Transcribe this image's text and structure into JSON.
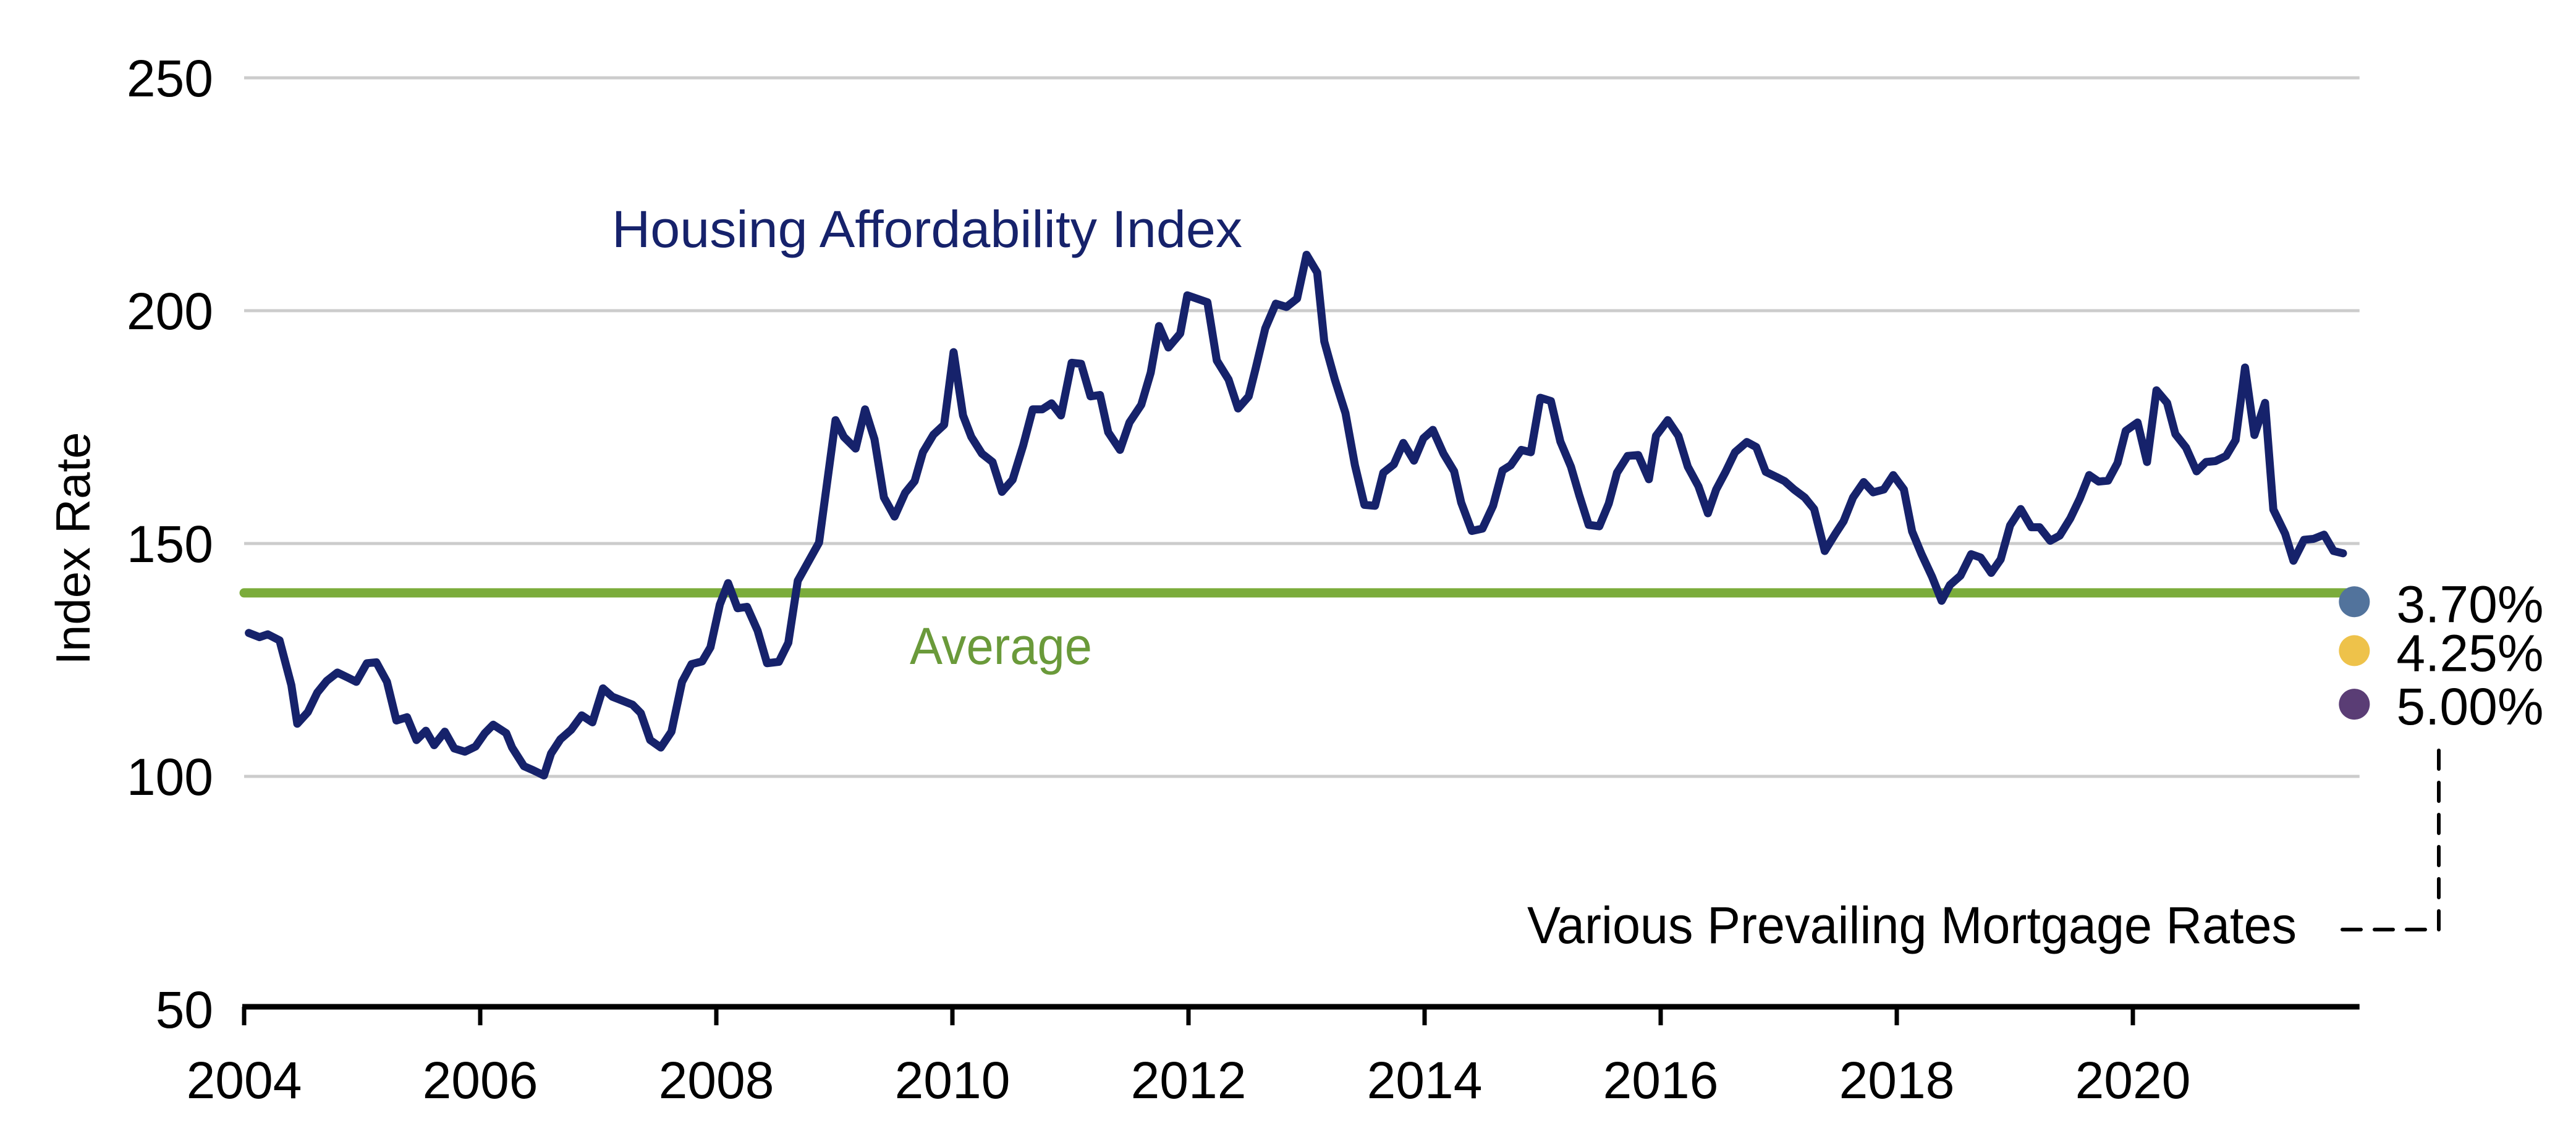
{
  "chart_data": {
    "type": "line",
    "title": "",
    "xlabel": "",
    "ylabel": "Index Rate",
    "xlim": [
      2004,
      2021.92
    ],
    "ylim": [
      50,
      250
    ],
    "grid": true,
    "x_ticks": [
      2004,
      2006,
      2008,
      2010,
      2012,
      2014,
      2016,
      2018,
      2020
    ],
    "x_tick_labels": [
      "2004",
      "2006",
      "2008",
      "2010",
      "2012",
      "2014",
      "2016",
      "2018",
      "2020"
    ],
    "y_ticks": [
      50,
      100,
      150,
      200,
      250
    ],
    "y_tick_labels": [
      "50",
      "100",
      "150",
      "200",
      "250"
    ],
    "series": [
      {
        "name": "Housing Affordability Index",
        "color": "#16226b",
        "label": "Housing Affordability Index",
        "points": [
          [
            2004.04,
            130.8
          ],
          [
            2004.13,
            129.9
          ],
          [
            2004.2,
            130.5
          ],
          [
            2004.3,
            129.2
          ],
          [
            2004.4,
            119.6
          ],
          [
            2004.45,
            111.3
          ],
          [
            2004.54,
            113.8
          ],
          [
            2004.62,
            118
          ],
          [
            2004.7,
            120.5
          ],
          [
            2004.79,
            122.3
          ],
          [
            2004.88,
            121.2
          ],
          [
            2004.95,
            120.3
          ],
          [
            2005.04,
            124.3
          ],
          [
            2005.12,
            124.5
          ],
          [
            2005.21,
            120.3
          ],
          [
            2005.29,
            112
          ],
          [
            2005.38,
            112.7
          ],
          [
            2005.46,
            107.8
          ],
          [
            2005.54,
            109.8
          ],
          [
            2005.61,
            106.7
          ],
          [
            2005.7,
            109.6
          ],
          [
            2005.78,
            106
          ],
          [
            2005.87,
            105.3
          ],
          [
            2005.96,
            106.4
          ],
          [
            2006.04,
            109.3
          ],
          [
            2006.11,
            111.1
          ],
          [
            2006.22,
            109.3
          ],
          [
            2006.27,
            106.2
          ],
          [
            2006.37,
            102.2
          ],
          [
            2006.45,
            101.3
          ],
          [
            2006.54,
            100.2
          ],
          [
            2006.6,
            104.9
          ],
          [
            2006.68,
            108
          ],
          [
            2006.77,
            110
          ],
          [
            2006.86,
            113.1
          ],
          [
            2006.95,
            111.6
          ],
          [
            2007.04,
            118.9
          ],
          [
            2007.12,
            117.1
          ],
          [
            2007.2,
            116.3
          ],
          [
            2007.29,
            115.4
          ],
          [
            2007.36,
            113.6
          ],
          [
            2007.44,
            107.8
          ],
          [
            2007.53,
            106.2
          ],
          [
            2007.62,
            109.6
          ],
          [
            2007.71,
            120.3
          ],
          [
            2007.79,
            124.1
          ],
          [
            2007.88,
            124.7
          ],
          [
            2007.95,
            127.7
          ],
          [
            2008.03,
            136.9
          ],
          [
            2008.1,
            141.5
          ],
          [
            2008.18,
            136.1
          ],
          [
            2008.26,
            136.4
          ],
          [
            2008.35,
            131.3
          ],
          [
            2008.43,
            124.3
          ],
          [
            2008.53,
            124.6
          ],
          [
            2008.61,
            128.7
          ],
          [
            2008.69,
            142
          ],
          [
            2008.87,
            150.2
          ],
          [
            2009.01,
            176.5
          ],
          [
            2009.08,
            172.9
          ],
          [
            2009.18,
            170.4
          ],
          [
            2009.26,
            178.8
          ],
          [
            2009.34,
            172.4
          ],
          [
            2009.42,
            159.9
          ],
          [
            2009.51,
            155.8
          ],
          [
            2009.6,
            160.9
          ],
          [
            2009.68,
            163.4
          ],
          [
            2009.75,
            169.6
          ],
          [
            2009.84,
            173.4
          ],
          [
            2009.93,
            175.5
          ],
          [
            2010.01,
            191.1
          ],
          [
            2010.09,
            177.5
          ],
          [
            2010.16,
            172.9
          ],
          [
            2010.25,
            169.3
          ],
          [
            2010.34,
            167.5
          ],
          [
            2010.42,
            161.1
          ],
          [
            2010.51,
            163.7
          ],
          [
            2010.6,
            171.1
          ],
          [
            2010.68,
            178.8
          ],
          [
            2010.76,
            178.8
          ],
          [
            2010.84,
            180.1
          ],
          [
            2010.92,
            177.5
          ],
          [
            2011.01,
            188.8
          ],
          [
            2011.09,
            188.6
          ],
          [
            2011.17,
            181.6
          ],
          [
            2011.25,
            181.9
          ],
          [
            2011.32,
            173.9
          ],
          [
            2011.42,
            170.1
          ],
          [
            2011.5,
            176
          ],
          [
            2011.6,
            179.8
          ],
          [
            2011.68,
            186.7
          ],
          [
            2011.75,
            196.7
          ],
          [
            2011.83,
            192.1
          ],
          [
            2011.93,
            195.1
          ],
          [
            2011.99,
            203.3
          ],
          [
            2012.16,
            201.8
          ],
          [
            2012.24,
            189.3
          ],
          [
            2012.34,
            185.2
          ],
          [
            2012.42,
            179
          ],
          [
            2012.51,
            181.6
          ],
          [
            2012.57,
            187.7
          ],
          [
            2012.65,
            196.2
          ],
          [
            2012.74,
            201.5
          ],
          [
            2012.83,
            200.8
          ],
          [
            2012.92,
            202.6
          ],
          [
            2013.0,
            212
          ],
          [
            2013.09,
            208.2
          ],
          [
            2013.15,
            193.4
          ],
          [
            2013.24,
            185.2
          ],
          [
            2013.33,
            178
          ],
          [
            2013.41,
            166.8
          ],
          [
            2013.49,
            158.3
          ],
          [
            2013.58,
            158.1
          ],
          [
            2013.65,
            165.2
          ],
          [
            2013.74,
            167
          ],
          [
            2013.82,
            171.6
          ],
          [
            2013.91,
            167.8
          ],
          [
            2013.99,
            172.6
          ],
          [
            2014.07,
            174.4
          ],
          [
            2014.16,
            169.3
          ],
          [
            2014.25,
            165.5
          ],
          [
            2014.31,
            158.8
          ],
          [
            2014.4,
            152.7
          ],
          [
            2014.49,
            153.2
          ],
          [
            2014.58,
            158.1
          ],
          [
            2014.66,
            165.7
          ],
          [
            2014.73,
            166.8
          ],
          [
            2014.82,
            170.1
          ],
          [
            2014.9,
            169.6
          ],
          [
            2014.98,
            181.3
          ],
          [
            2015.07,
            180.6
          ],
          [
            2015.15,
            171.9
          ],
          [
            2015.24,
            166.5
          ],
          [
            2015.31,
            160.4
          ],
          [
            2015.39,
            154
          ],
          [
            2015.48,
            153.7
          ],
          [
            2015.56,
            158.6
          ],
          [
            2015.63,
            165.2
          ],
          [
            2015.72,
            168.8
          ],
          [
            2015.81,
            169
          ],
          [
            2015.9,
            163.8
          ],
          [
            2015.96,
            173.1
          ],
          [
            2016.06,
            176.5
          ],
          [
            2016.15,
            173.1
          ],
          [
            2016.23,
            166.5
          ],
          [
            2016.32,
            162.3
          ],
          [
            2016.4,
            156.5
          ],
          [
            2016.47,
            161.6
          ],
          [
            2016.55,
            165.4
          ],
          [
            2016.63,
            169.6
          ],
          [
            2016.73,
            171.8
          ],
          [
            2016.81,
            170.7
          ],
          [
            2016.89,
            165.4
          ],
          [
            2016.98,
            164.3
          ],
          [
            2017.05,
            163.4
          ],
          [
            2017.13,
            161.6
          ],
          [
            2017.22,
            159.9
          ],
          [
            2017.3,
            157.4
          ],
          [
            2017.39,
            148.4
          ],
          [
            2017.48,
            152.1
          ],
          [
            2017.55,
            154.8
          ],
          [
            2017.63,
            159.9
          ],
          [
            2017.72,
            163.2
          ],
          [
            2017.8,
            161
          ],
          [
            2017.89,
            161.6
          ],
          [
            2017.97,
            164.7
          ],
          [
            2018.06,
            161.6
          ],
          [
            2018.13,
            152.6
          ],
          [
            2018.21,
            147.7
          ],
          [
            2018.3,
            142.8
          ],
          [
            2018.38,
            137.7
          ],
          [
            2018.45,
            141.1
          ],
          [
            2018.54,
            143.1
          ],
          [
            2018.63,
            147.7
          ],
          [
            2018.71,
            147
          ],
          [
            2018.8,
            143.7
          ],
          [
            2018.88,
            146.6
          ],
          [
            2018.96,
            153.9
          ],
          [
            2019.05,
            157.4
          ],
          [
            2019.14,
            153.5
          ],
          [
            2019.21,
            153.5
          ],
          [
            2019.3,
            150.6
          ],
          [
            2019.38,
            151.7
          ],
          [
            2019.47,
            155.4
          ],
          [
            2019.55,
            159.6
          ],
          [
            2019.63,
            164.7
          ],
          [
            2019.71,
            163.3
          ],
          [
            2019.79,
            163.5
          ],
          [
            2019.87,
            167.3
          ],
          [
            2019.94,
            174.2
          ],
          [
            2020.04,
            176
          ],
          [
            2020.12,
            167.5
          ],
          [
            2020.2,
            182.9
          ],
          [
            2020.29,
            180.2
          ],
          [
            2020.36,
            173.5
          ],
          [
            2020.45,
            170.6
          ],
          [
            2020.54,
            165.5
          ],
          [
            2020.62,
            167.5
          ],
          [
            2020.7,
            167.7
          ],
          [
            2020.79,
            168.8
          ],
          [
            2020.87,
            172.2
          ],
          [
            2020.95,
            187.8
          ],
          [
            2021.03,
            173.3
          ],
          [
            2021.12,
            180.2
          ],
          [
            2021.19,
            157.3
          ],
          [
            2021.29,
            152.1
          ],
          [
            2021.36,
            146.3
          ],
          [
            2021.45,
            150.8
          ],
          [
            2021.53,
            151
          ],
          [
            2021.62,
            151.9
          ],
          [
            2021.7,
            148.4
          ],
          [
            2021.78,
            147.9
          ]
        ]
      },
      {
        "name": "Average",
        "color": "#7bac3b",
        "label": "Average",
        "value": 139.4,
        "x_range": [
          2004,
          2021.85
        ]
      }
    ],
    "markers": [
      {
        "label": "3.70%",
        "x": 2021.85,
        "value": 137.5,
        "color": "#52739c"
      },
      {
        "label": "4.25%",
        "x": 2021.85,
        "value": 127.0,
        "color": "#eec24a"
      },
      {
        "label": "5.00%",
        "x": 2021.85,
        "value": 115.5,
        "color": "#5a3d75"
      }
    ],
    "annotation": "Various Prevailing Mortgage Rates"
  }
}
